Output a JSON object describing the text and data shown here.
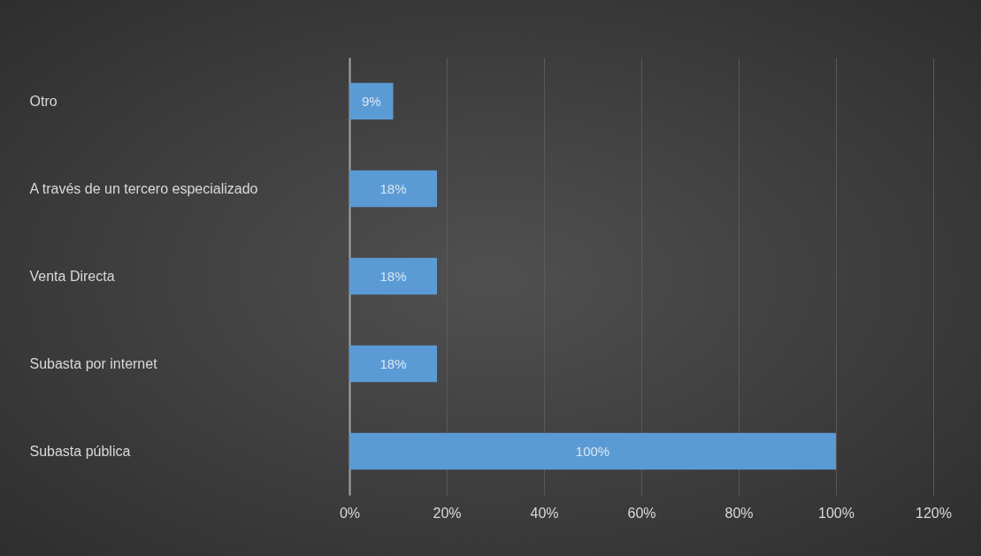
{
  "chart_data": {
    "type": "bar",
    "orientation": "horizontal",
    "categories": [
      "Otro",
      "A través de un tercero especializado",
      "Venta Directa",
      "Subasta por internet",
      "Subasta pública"
    ],
    "values": [
      9,
      18,
      18,
      18,
      100
    ],
    "value_labels": [
      "9%",
      "18%",
      "18%",
      "18%",
      "100%"
    ],
    "color": "#5b9bd5",
    "xlim": [
      0,
      120
    ],
    "xticks": [
      {
        "value": 0,
        "label": "0%"
      },
      {
        "value": 20,
        "label": "20%"
      },
      {
        "value": 40,
        "label": "40%"
      },
      {
        "value": 60,
        "label": "60%"
      },
      {
        "value": 80,
        "label": "80%"
      },
      {
        "value": 100,
        "label": "100%"
      },
      {
        "value": 120,
        "label": "120%"
      }
    ],
    "grid": "x"
  }
}
